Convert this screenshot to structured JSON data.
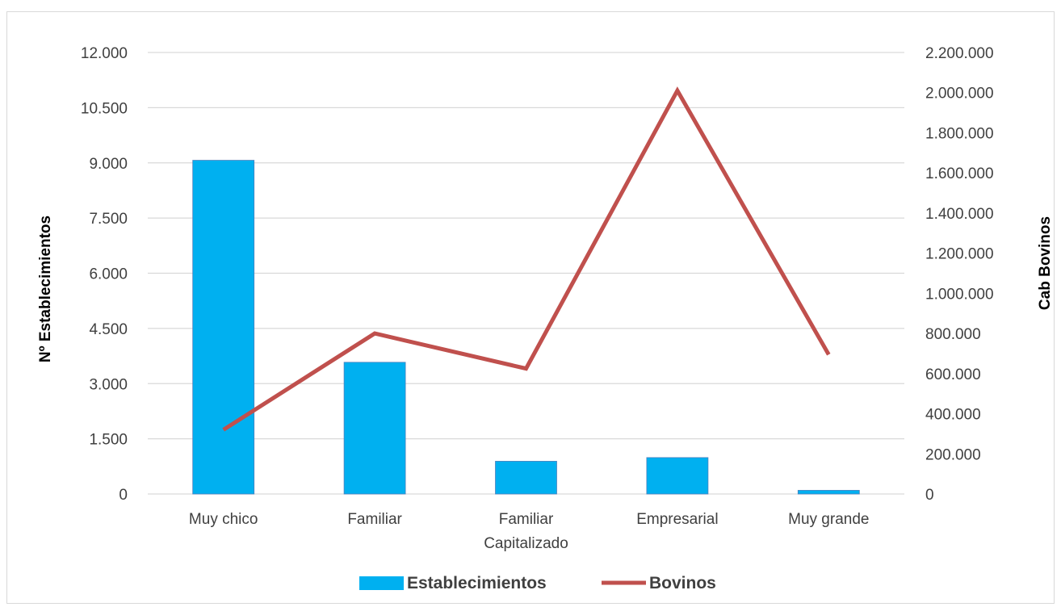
{
  "chart_data": {
    "type": "bar",
    "categories": [
      "Muy chico",
      "Familiar",
      "Familiar Capitalizado",
      "Empresarial",
      "Muy grande"
    ],
    "category_lines": [
      [
        "Muy chico"
      ],
      [
        "Familiar"
      ],
      [
        "Familiar",
        "Capitalizado"
      ],
      [
        "Empresarial"
      ],
      [
        "Muy grande"
      ]
    ],
    "series": [
      {
        "name": "Establecimientos",
        "type": "bar",
        "axis": "left",
        "color": "#00b0f0",
        "values": [
          9070,
          3580,
          890,
          990,
          100
        ]
      },
      {
        "name": "Bovinos",
        "type": "line",
        "axis": "right",
        "color": "#c0504d",
        "values": [
          320000,
          800000,
          625000,
          2010000,
          695000
        ]
      }
    ],
    "title": "",
    "ylabel": "Nº Establecimientos",
    "y2label": "Cab Bovinos",
    "ylim": [
      0,
      12000
    ],
    "y2lim": [
      0,
      2200000
    ],
    "yticks": [
      "0",
      "1.500",
      "3.000",
      "4.500",
      "6.000",
      "7.500",
      "9.000",
      "10.500",
      "12.000"
    ],
    "y2ticks": [
      "0",
      "200.000",
      "400.000",
      "600.000",
      "800.000",
      "1.000.000",
      "1.200.000",
      "1.400.000",
      "1.600.000",
      "1.800.000",
      "2.000.000",
      "2.200.000"
    ],
    "grid": true,
    "legend": "bottom"
  }
}
